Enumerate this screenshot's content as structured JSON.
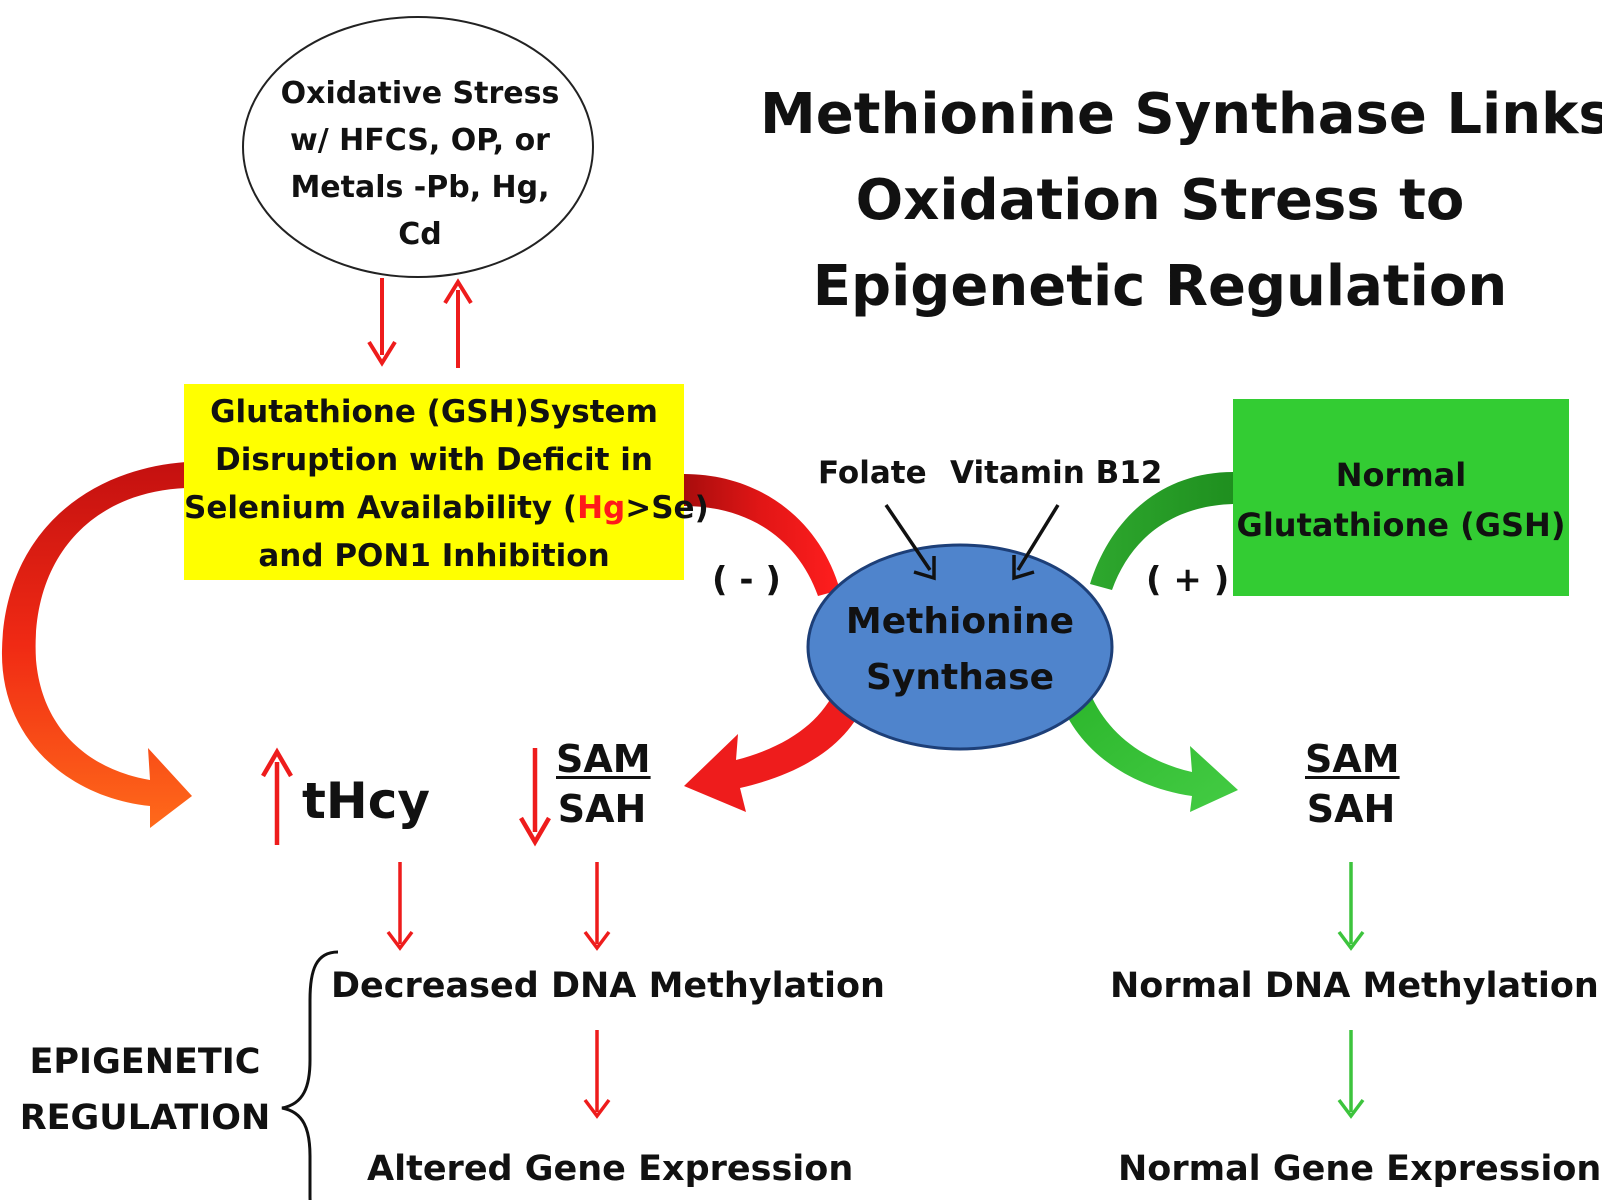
{
  "title": {
    "line1": "Methionine Synthase Links",
    "line2": "Oxidation Stress to",
    "line3": "Epigenetic Regulation"
  },
  "oxidative_stress": {
    "line1": "Oxidative Stress",
    "line2": "w/ HFCS, OP,  or",
    "line3": "Metals -Pb, Hg,",
    "line4": "Cd"
  },
  "gsh_disruption": {
    "line1": "Glutathione (GSH)System",
    "line2": "Disruption with Deficit in",
    "line3_pre": "Selenium Availability (",
    "line3_hl": "Hg",
    "line3_post": ">Se)",
    "line4": "and PON1 Inhibition"
  },
  "normal_gsh": {
    "line1": "Normal",
    "line2": "Glutathione (GSH)"
  },
  "methionine_synthase": {
    "line1": "Methionine",
    "line2": "Synthase"
  },
  "cofactors": {
    "folate": "Folate",
    "b12": "Vitamin B12"
  },
  "signs": {
    "negative": "( - )",
    "positive": "( + )"
  },
  "thcy": "tHcy",
  "left_ratio": {
    "num": "SAM",
    "den": "SAH"
  },
  "right_ratio": {
    "num": "SAM",
    "den": "SAH"
  },
  "left_outcomes": {
    "methylation": "Decreased DNA Methylation",
    "expression": "Altered Gene Expression"
  },
  "right_outcomes": {
    "methylation": "Normal DNA Methylation",
    "expression": "Normal Gene Expression"
  },
  "epigenetic_label": {
    "line1": "EPIGENETIC",
    "line2": "REGULATION"
  },
  "colors": {
    "red": "#ee1c1c",
    "dark_red": "#b01010",
    "orange": "#ff5a1a",
    "green": "#3dc43d",
    "dark_green": "#1f8f1f",
    "yellow": "#ffff00",
    "box_green": "#33cc33",
    "ms_blue": "#4f84cc"
  }
}
